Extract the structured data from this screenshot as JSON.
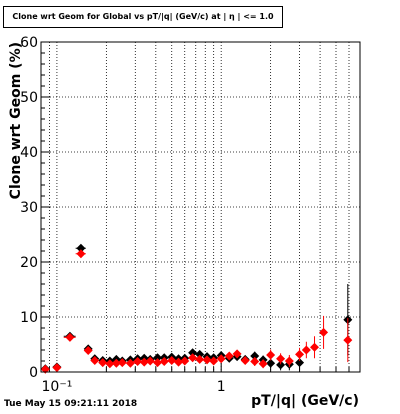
{
  "title": "Clone wrt Geom for Global vs pT/|q| (GeV/c) at | η | <= 1.0",
  "timestamp": "Tue May 15 09:21:11 2018",
  "colors": {
    "series_black": "#000000",
    "series_red": "#ff0000",
    "grid": "#000000"
  },
  "chart_data": {
    "type": "scatter",
    "title": "Clone wrt Geom for Global vs pT/|q| (GeV/c) at | η | <= 1.0",
    "xlabel": "pT/|q| (GeV/c)",
    "ylabel": "Clone wrt Geom (%)",
    "x_scale": "log",
    "xlim": [
      0.08,
      7.0
    ],
    "ylim": [
      0,
      60
    ],
    "x_tick_labels": [
      "10⁻¹",
      "1"
    ],
    "y_tick_labels": [
      "0",
      "10",
      "20",
      "30",
      "40",
      "50",
      "60"
    ],
    "grid": true,
    "series": [
      {
        "marker": "diamond",
        "color": "#000000",
        "points": [
          {
            "x": 0.085,
            "y": 0.6,
            "xerr": 0.005,
            "yerr": 0.3
          },
          {
            "x": 0.1,
            "y": 0.9,
            "xerr": 0.005,
            "yerr": 0.3
          },
          {
            "x": 0.12,
            "y": 6.5,
            "xerr": 0.01,
            "yerr": 0.5
          },
          {
            "x": 0.14,
            "y": 22.5,
            "xerr": 0.01,
            "yerr": 0.6
          },
          {
            "x": 0.155,
            "y": 4.2,
            "xerr": 0.005,
            "yerr": 0.4
          },
          {
            "x": 0.17,
            "y": 2.4,
            "yerr": 0.3
          },
          {
            "x": 0.19,
            "y": 2.1,
            "yerr": 0.3
          },
          {
            "x": 0.21,
            "y": 2.0,
            "yerr": 0.3
          },
          {
            "x": 0.23,
            "y": 2.3,
            "yerr": 0.3
          },
          {
            "x": 0.25,
            "y": 2.0,
            "yerr": 0.3
          },
          {
            "x": 0.28,
            "y": 2.2,
            "yerr": 0.3
          },
          {
            "x": 0.31,
            "y": 2.4,
            "yerr": 0.3
          },
          {
            "x": 0.34,
            "y": 2.5,
            "yerr": 0.3
          },
          {
            "x": 0.37,
            "y": 2.3,
            "yerr": 0.3
          },
          {
            "x": 0.41,
            "y": 2.6,
            "yerr": 0.4
          },
          {
            "x": 0.45,
            "y": 2.6,
            "yerr": 0.4
          },
          {
            "x": 0.5,
            "y": 2.7,
            "yerr": 0.4
          },
          {
            "x": 0.55,
            "y": 2.4,
            "yerr": 0.4
          },
          {
            "x": 0.6,
            "y": 2.5,
            "yerr": 0.4
          },
          {
            "x": 0.67,
            "y": 3.5,
            "yerr": 0.5
          },
          {
            "x": 0.74,
            "y": 3.2,
            "yerr": 0.5
          },
          {
            "x": 0.82,
            "y": 2.8,
            "yerr": 0.5
          },
          {
            "x": 0.9,
            "y": 2.6,
            "yerr": 0.5
          },
          {
            "x": 1.0,
            "y": 3.0,
            "yerr": 0.6
          },
          {
            "x": 1.12,
            "y": 2.5,
            "yerr": 0.6
          },
          {
            "x": 1.25,
            "y": 2.8,
            "yerr": 0.6
          },
          {
            "x": 1.4,
            "y": 2.3,
            "yerr": 0.7
          },
          {
            "x": 1.6,
            "y": 2.9,
            "yerr": 0.8
          },
          {
            "x": 1.8,
            "y": 2.2,
            "yerr": 0.8
          },
          {
            "x": 2.0,
            "y": 1.6,
            "yerr": 0.9
          },
          {
            "x": 2.3,
            "y": 1.3,
            "yerr": 1.0
          },
          {
            "x": 2.6,
            "y": 1.4,
            "yerr": 1.1
          },
          {
            "x": 3.0,
            "y": 1.7,
            "yerr": 1.3
          },
          {
            "x": 5.9,
            "y": 9.5,
            "yerr": 6.5
          }
        ]
      },
      {
        "marker": "diamond",
        "color": "#ff0000",
        "points": [
          {
            "x": 0.085,
            "y": 0.5,
            "xerr": 0.005,
            "yerr": 0.3
          },
          {
            "x": 0.1,
            "y": 0.8,
            "xerr": 0.005,
            "yerr": 0.3
          },
          {
            "x": 0.12,
            "y": 6.3,
            "xerr": 0.01,
            "yerr": 0.5
          },
          {
            "x": 0.14,
            "y": 21.5,
            "xerr": 0.01,
            "yerr": 0.6
          },
          {
            "x": 0.155,
            "y": 3.9,
            "xerr": 0.005,
            "yerr": 0.4
          },
          {
            "x": 0.17,
            "y": 2.1,
            "yerr": 0.3
          },
          {
            "x": 0.19,
            "y": 1.7,
            "yerr": 0.3
          },
          {
            "x": 0.21,
            "y": 1.5,
            "yerr": 0.3
          },
          {
            "x": 0.23,
            "y": 1.6,
            "yerr": 0.3
          },
          {
            "x": 0.25,
            "y": 1.7,
            "yerr": 0.3
          },
          {
            "x": 0.28,
            "y": 1.6,
            "yerr": 0.3
          },
          {
            "x": 0.31,
            "y": 1.9,
            "yerr": 0.3
          },
          {
            "x": 0.34,
            "y": 1.8,
            "yerr": 0.3
          },
          {
            "x": 0.37,
            "y": 2.0,
            "yerr": 0.3
          },
          {
            "x": 0.41,
            "y": 1.7,
            "yerr": 0.4
          },
          {
            "x": 0.45,
            "y": 1.9,
            "yerr": 0.4
          },
          {
            "x": 0.5,
            "y": 2.1,
            "yerr": 0.4
          },
          {
            "x": 0.55,
            "y": 1.8,
            "yerr": 0.4
          },
          {
            "x": 0.6,
            "y": 2.0,
            "yerr": 0.4
          },
          {
            "x": 0.67,
            "y": 2.6,
            "yerr": 0.5
          },
          {
            "x": 0.74,
            "y": 2.3,
            "yerr": 0.5
          },
          {
            "x": 0.82,
            "y": 2.2,
            "yerr": 0.5
          },
          {
            "x": 0.9,
            "y": 2.0,
            "yerr": 0.5
          },
          {
            "x": 1.0,
            "y": 2.4,
            "yerr": 0.6
          },
          {
            "x": 1.12,
            "y": 2.9,
            "yerr": 0.6
          },
          {
            "x": 1.25,
            "y": 3.3,
            "yerr": 0.7
          },
          {
            "x": 1.4,
            "y": 2.1,
            "yerr": 0.7
          },
          {
            "x": 1.6,
            "y": 1.9,
            "yerr": 0.8
          },
          {
            "x": 1.8,
            "y": 1.5,
            "yerr": 0.8
          },
          {
            "x": 2.0,
            "y": 3.1,
            "yerr": 1.0
          },
          {
            "x": 2.3,
            "y": 2.4,
            "yerr": 1.0
          },
          {
            "x": 2.6,
            "y": 2.0,
            "yerr": 1.1
          },
          {
            "x": 3.0,
            "y": 3.2,
            "yerr": 1.2
          },
          {
            "x": 3.3,
            "y": 4.0,
            "yerr": 1.5
          },
          {
            "x": 3.7,
            "y": 4.5,
            "yerr": 2.0
          },
          {
            "x": 4.2,
            "y": 7.2,
            "yerr": 3.0
          },
          {
            "x": 5.9,
            "y": 5.8,
            "yerr": 4.0
          }
        ]
      }
    ]
  }
}
